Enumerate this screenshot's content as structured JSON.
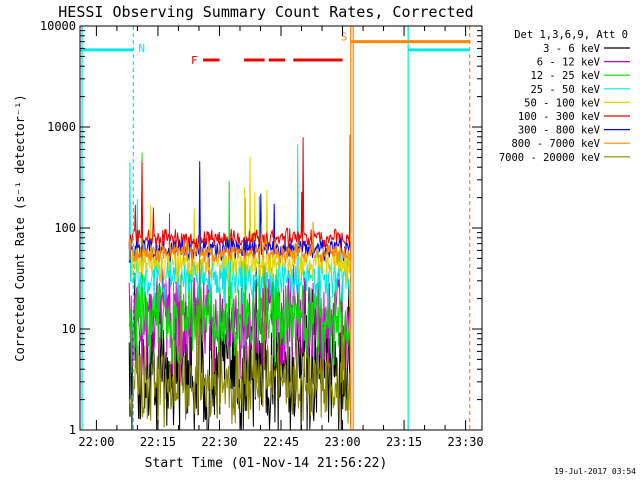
{
  "chart_data": {
    "type": "line",
    "title": "HESSI Observing Summary Count Rates, Corrected",
    "xlabel": "Start Time (01-Nov-14 21:56:22)",
    "ylabel": "Corrected Count Rate (s⁻¹ detector⁻¹)",
    "x_scale": "time",
    "x_range": [
      "21:56",
      "23:34"
    ],
    "x_ticks": [
      "22:00",
      "22:15",
      "22:30",
      "22:45",
      "23:00",
      "23:15",
      "23:30"
    ],
    "y_scale": "log",
    "ylim": [
      1,
      10000
    ],
    "y_ticks": [
      "1",
      "10",
      "100",
      "1000",
      "10000"
    ],
    "legend_title": "Det 1,3,6,9, Att 0",
    "legend_position": "outside-right",
    "data_window": [
      "22:08",
      "23:02"
    ],
    "series": [
      {
        "name": "3 - 6 keV",
        "color": "#000000",
        "level": 4,
        "spread": 0.35
      },
      {
        "name": "6 - 12 keV",
        "color": "#cc00cc",
        "level": 12,
        "spread": 0.25
      },
      {
        "name": "12 - 25 keV",
        "color": "#00dd00",
        "level": 12,
        "spread": 0.22
      },
      {
        "name": "25 - 50 keV",
        "color": "#00e8e8",
        "level": 32,
        "spread": 0.12
      },
      {
        "name": "50 - 100 keV",
        "color": "#e6d200",
        "level": 45,
        "spread": 0.08
      },
      {
        "name": "100 - 300 keV",
        "color": "#ee0000",
        "level": 78,
        "spread": 0.05
      },
      {
        "name": "300 - 800 keV",
        "color": "#0000ee",
        "level": 62,
        "spread": 0.05
      },
      {
        "name": "800 - 7000 keV",
        "color": "#ff8800",
        "level": 57,
        "spread": 0.05
      },
      {
        "name": "7000 - 20000 keV",
        "color": "#888800",
        "level": 3,
        "spread": 0.18
      }
    ],
    "annotations": [
      {
        "label": "N",
        "color": "#00e8e8",
        "kind": "night",
        "segments": [
          [
            "21:56",
            "22:09"
          ],
          [
            "23:16",
            "23:31"
          ]
        ],
        "level": 5800
      },
      {
        "label": "S",
        "color": "#ff8800",
        "kind": "saa",
        "segments": [
          [
            "23:02",
            "23:31"
          ]
        ],
        "level": 7000
      },
      {
        "label": "F",
        "color": "#ee0000",
        "kind": "flare",
        "segments": [
          [
            "22:26",
            "22:30"
          ],
          [
            "22:36",
            "22:41"
          ],
          [
            "22:42",
            "22:46"
          ],
          [
            "22:48",
            "23:00"
          ]
        ],
        "level": 4600
      }
    ],
    "vlines": [
      {
        "time": "21:56.5",
        "color": "#00e8e8",
        "style": "solid"
      },
      {
        "time": "22:09",
        "color": "#00e8e8",
        "style": "dashed"
      },
      {
        "time": "23:02",
        "color": "#ff8800",
        "style": "solid"
      },
      {
        "time": "23:02.6",
        "color": "#ff8800",
        "style": "solid"
      },
      {
        "time": "23:16",
        "color": "#00e8e8",
        "style": "solid"
      },
      {
        "time": "23:31",
        "color": "#ff8800",
        "style": "dashed"
      }
    ]
  },
  "footer": {
    "timestamp": "19-Jul-2017 03:54"
  }
}
